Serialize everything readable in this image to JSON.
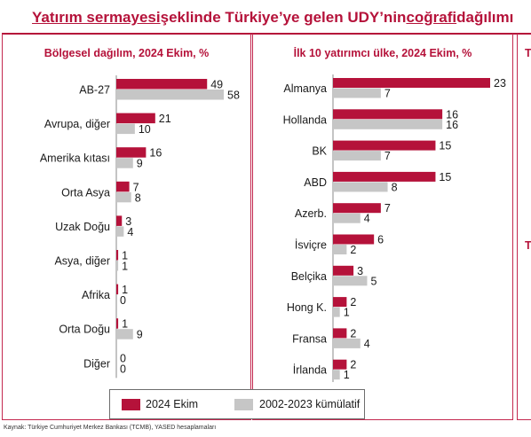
{
  "title": {
    "part1": "Yatırım sermayesi",
    "part2": " şeklinde Türkiye’ye gelen UDY’nin ",
    "part3": "coğrafi",
    "part4": " dağılımı"
  },
  "panel3": {
    "title": "T",
    "letter": "T"
  },
  "legend": [
    {
      "label": "2024 Ekim",
      "color": "#b5123a"
    },
    {
      "label": "2002-2023 kümülatif",
      "color": "#c6c6c6"
    }
  ],
  "source": "Kaynak: Türkiye Cumhuriyet Merkez Bankası (TCMB), YASED hesaplamaları",
  "chart_data": [
    {
      "type": "bar",
      "orientation": "horizontal",
      "title": "Bölgesel dağılım, 2024 Ekim, %",
      "categories": [
        "AB-27",
        "Avrupa, diğer",
        "Amerika kıtası",
        "Orta Asya",
        "Uzak Doğu",
        "Asya, diğer",
        "Afrika",
        "Orta Doğu",
        "Diğer"
      ],
      "series": [
        {
          "name": "2024 Ekim",
          "color": "#b5123a",
          "values": [
            49,
            21,
            16,
            7,
            3,
            1,
            1,
            1,
            0
          ]
        },
        {
          "name": "2002-2023 kümülatif",
          "color": "#c6c6c6",
          "values": [
            58,
            10,
            9,
            8,
            4,
            1,
            0,
            9,
            0
          ]
        }
      ],
      "xlim": [
        0,
        58
      ],
      "grid": false,
      "legend": "bottom"
    },
    {
      "type": "bar",
      "orientation": "horizontal",
      "title": "İlk 10 yatırımcı ülke, 2024 Ekim, %",
      "categories": [
        "Almanya",
        "Hollanda",
        "BK",
        "ABD",
        "Azerb.",
        "İsviçre",
        "Belçika",
        "Hong K.",
        "Fransa",
        "İrlanda"
      ],
      "series": [
        {
          "name": "2024 Ekim",
          "color": "#b5123a",
          "values": [
            23,
            16,
            15,
            15,
            7,
            6,
            3,
            2,
            2,
            2
          ]
        },
        {
          "name": "2002-2023 kümülatif",
          "color": "#c6c6c6",
          "values": [
            7,
            16,
            7,
            8,
            4,
            2,
            5,
            1,
            4,
            1
          ]
        }
      ],
      "xlim": [
        0,
        23
      ],
      "grid": false,
      "legend": "bottom"
    }
  ]
}
